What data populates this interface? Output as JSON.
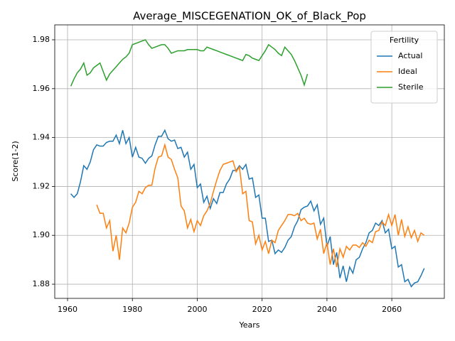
{
  "chart_data": {
    "type": "line",
    "title": "Average_MISCEGENATION_OK_of_Black_Pop",
    "xlabel": "Years",
    "ylabel": "Score(1-2)",
    "x": [
      1961,
      1962,
      1963,
      1964,
      1965,
      1966,
      1967,
      1968,
      1969,
      1970,
      1971,
      1972,
      1973,
      1974,
      1975,
      1976,
      1977,
      1978,
      1979,
      1980,
      1981,
      1982,
      1983,
      1984,
      1985,
      1986,
      1987,
      1988,
      1989,
      1990,
      1991,
      1992,
      1993,
      1994,
      1995,
      1996,
      1997,
      1998,
      1999,
      2000,
      2001,
      2002,
      2003,
      2004,
      2005,
      2006,
      2007,
      2008,
      2009,
      2010,
      2011,
      2012,
      2013,
      2014,
      2015,
      2016,
      2017,
      2018,
      2019,
      2020,
      2021,
      2022,
      2023,
      2024,
      2025,
      2026,
      2027,
      2028,
      2029,
      2030,
      2031,
      2032,
      2033,
      2034,
      2035,
      2036,
      2037,
      2038,
      2039,
      2040,
      2041,
      2042,
      2043,
      2044,
      2045,
      2046,
      2047,
      2048,
      2049,
      2050,
      2051,
      2052,
      2053,
      2054,
      2055,
      2056,
      2057,
      2058,
      2059,
      2060,
      2061,
      2062,
      2063,
      2064,
      2065,
      2066,
      2067,
      2068,
      2069,
      2070
    ],
    "series": [
      {
        "name": "Actual",
        "color": "#1f77b4",
        "values": [
          1.917,
          1.9155,
          1.917,
          1.922,
          1.9285,
          1.927,
          1.93,
          1.935,
          1.937,
          1.9365,
          1.9365,
          1.938,
          1.9385,
          1.9385,
          1.941,
          1.9375,
          1.943,
          1.9375,
          1.94,
          1.932,
          1.936,
          1.932,
          1.9315,
          1.9295,
          1.9315,
          1.9325,
          1.937,
          1.9405,
          1.9405,
          1.943,
          1.9395,
          1.9385,
          1.939,
          1.9355,
          1.936,
          1.932,
          1.934,
          1.927,
          1.929,
          1.9195,
          1.921,
          1.9135,
          1.916,
          1.911,
          1.915,
          1.913,
          1.9175,
          1.9175,
          1.921,
          1.923,
          1.9265,
          1.9265,
          1.9285,
          1.927,
          1.929,
          1.923,
          1.9235,
          1.9155,
          1.9165,
          1.907,
          1.907,
          1.8975,
          1.898,
          1.8925,
          1.894,
          1.893,
          1.895,
          1.898,
          1.8995,
          1.9035,
          1.906,
          1.9105,
          1.9115,
          1.912,
          1.914,
          1.91,
          1.9125,
          1.9045,
          1.907,
          1.8955,
          1.8995,
          1.888,
          1.893,
          1.8825,
          1.8875,
          1.881,
          1.887,
          1.8845,
          1.89,
          1.891,
          1.8945,
          1.897,
          1.901,
          1.902,
          1.905,
          1.904,
          1.906,
          1.901,
          1.9025,
          1.8945,
          1.8955,
          1.887,
          1.888,
          1.881,
          1.882,
          1.879,
          1.8805,
          1.881,
          1.8835,
          1.8865
        ]
      },
      {
        "name": "Ideal",
        "color": "#ff7f0e",
        "values": [
          null,
          null,
          null,
          null,
          null,
          null,
          null,
          null,
          1.9125,
          1.909,
          1.909,
          1.903,
          1.906,
          1.8935,
          1.9,
          1.89,
          1.903,
          1.901,
          1.905,
          1.9115,
          1.9135,
          1.918,
          1.917,
          1.9195,
          1.9205,
          1.9205,
          1.9275,
          1.932,
          1.9325,
          1.937,
          1.932,
          1.931,
          1.927,
          1.9235,
          1.912,
          1.91,
          1.903,
          1.9065,
          1.9015,
          1.906,
          1.904,
          1.908,
          1.91,
          1.913,
          1.918,
          1.9225,
          1.9265,
          1.929,
          1.9295,
          1.93,
          1.9305,
          1.926,
          1.928,
          1.917,
          1.918,
          1.906,
          1.9055,
          1.8965,
          1.9,
          1.894,
          1.8975,
          1.8925,
          1.898,
          1.897,
          1.902,
          1.904,
          1.906,
          1.9085,
          1.9085,
          1.908,
          1.909,
          1.906,
          1.907,
          1.905,
          1.9045,
          1.905,
          1.8985,
          1.9025,
          1.8925,
          1.897,
          1.888,
          1.8945,
          1.887,
          1.8945,
          1.891,
          1.8955,
          1.894,
          1.896,
          1.896,
          1.895,
          1.897,
          1.8955,
          1.898,
          1.897,
          1.9015,
          1.902,
          1.9055,
          1.904,
          1.9085,
          1.904,
          1.9085,
          1.9,
          1.9065,
          1.8995,
          1.9035,
          1.899,
          1.902,
          1.8975,
          1.901,
          1.9
        ]
      },
      {
        "name": "Sterile",
        "color": "#2ca02c",
        "values": [
          1.961,
          1.964,
          1.9665,
          1.968,
          1.9705,
          1.9655,
          1.9665,
          1.9685,
          1.9695,
          1.9705,
          1.967,
          1.9635,
          1.966,
          1.9675,
          1.969,
          1.9705,
          1.972,
          1.973,
          1.9745,
          1.978,
          1.9785,
          1.979,
          1.9795,
          1.98,
          1.978,
          1.9765,
          1.977,
          1.9775,
          1.978,
          1.978,
          1.9765,
          1.9745,
          1.975,
          1.9755,
          1.9755,
          1.9755,
          1.976,
          1.976,
          1.976,
          1.976,
          1.9755,
          1.9755,
          1.977,
          1.9765,
          1.976,
          1.9755,
          1.975,
          1.9745,
          1.974,
          1.9735,
          1.973,
          1.9725,
          1.972,
          1.9715,
          1.974,
          1.9735,
          1.9725,
          1.972,
          1.9715,
          1.9735,
          1.9755,
          1.978,
          1.977,
          1.976,
          1.9745,
          1.9735,
          1.977,
          1.9755,
          1.974,
          1.9715,
          1.9685,
          1.9655,
          1.9615,
          1.966,
          null,
          null,
          null,
          null,
          null,
          null,
          null,
          null,
          null,
          null,
          null,
          null,
          null,
          null,
          null,
          null,
          null,
          null,
          null,
          null,
          null,
          null,
          null,
          null,
          null,
          null,
          null,
          null,
          null,
          null,
          null,
          null,
          null,
          null,
          null,
          null
        ]
      }
    ],
    "xlim": [
      1956.05,
      2076.2
    ],
    "xticks": [
      1960,
      1980,
      2000,
      2020,
      2040,
      2060
    ],
    "ylim": [
      1.8742,
      1.9861
    ],
    "yticks": [
      1.88,
      {
        "value": 1.9,
        "label": "1.90"
      },
      1.92,
      1.94,
      1.96,
      1.98
    ],
    "grid": true,
    "legend": {
      "title": "Fertility",
      "loc": "upper right"
    }
  }
}
